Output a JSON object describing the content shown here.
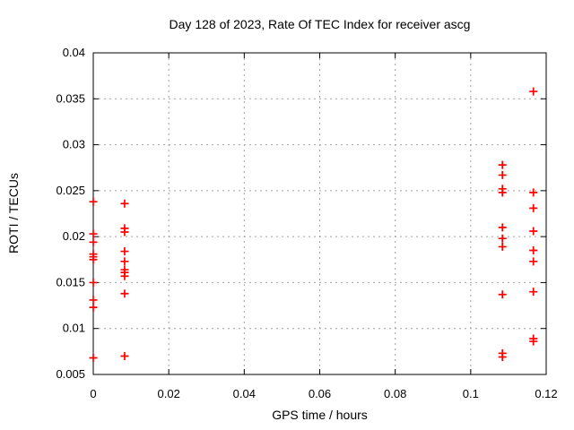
{
  "chart_data": {
    "type": "scatter",
    "title": "Day 128 of 2023, Rate Of TEC Index for receiver ascg",
    "xlabel": "GPS time / hours",
    "ylabel": "ROTI / TECUs",
    "xlim": [
      0,
      0.12
    ],
    "ylim": [
      0.005,
      0.04
    ],
    "xticks": [
      "0",
      "0.02",
      "0.04",
      "0.06",
      "0.08",
      "0.1",
      "0.12"
    ],
    "yticks": [
      "0.005",
      "0.01",
      "0.015",
      "0.02",
      "0.025",
      "0.03",
      "0.035",
      "0.04"
    ],
    "grid": true,
    "legend": false,
    "marker": "plus",
    "marker_color": "#ff0000",
    "marker_size": 9,
    "grid_color": "#a0a0a0",
    "border_color": "#000000",
    "series": [
      {
        "name": "ROTI",
        "points": [
          [
            0,
            0.0238
          ],
          [
            0,
            0.0203
          ],
          [
            0,
            0.0194
          ],
          [
            0,
            0.0181
          ],
          [
            0,
            0.0178
          ],
          [
            0,
            0.0175
          ],
          [
            0,
            0.015
          ],
          [
            0,
            0.0131
          ],
          [
            0,
            0.0123
          ],
          [
            0,
            0.0068
          ],
          [
            0.0083,
            0.0236
          ],
          [
            0.0083,
            0.0209
          ],
          [
            0.0083,
            0.0205
          ],
          [
            0.0083,
            0.0184
          ],
          [
            0.0083,
            0.0173
          ],
          [
            0.0083,
            0.0164
          ],
          [
            0.0083,
            0.0161
          ],
          [
            0.0083,
            0.0157
          ],
          [
            0.0083,
            0.0138
          ],
          [
            0.0083,
            0.007
          ],
          [
            0.1084,
            0.0278
          ],
          [
            0.1084,
            0.0267
          ],
          [
            0.1084,
            0.0252
          ],
          [
            0.1084,
            0.0248
          ],
          [
            0.1084,
            0.021
          ],
          [
            0.1084,
            0.0198
          ],
          [
            0.1084,
            0.0189
          ],
          [
            0.1084,
            0.0137
          ],
          [
            0.1084,
            0.0073
          ],
          [
            0.1084,
            0.0069
          ],
          [
            0.1166,
            0.0358
          ],
          [
            0.1166,
            0.0248
          ],
          [
            0.1166,
            0.0231
          ],
          [
            0.1166,
            0.0206
          ],
          [
            0.1166,
            0.0185
          ],
          [
            0.1166,
            0.0173
          ],
          [
            0.1166,
            0.014
          ],
          [
            0.1166,
            0.0089
          ],
          [
            0.1166,
            0.0086
          ]
        ]
      }
    ]
  }
}
